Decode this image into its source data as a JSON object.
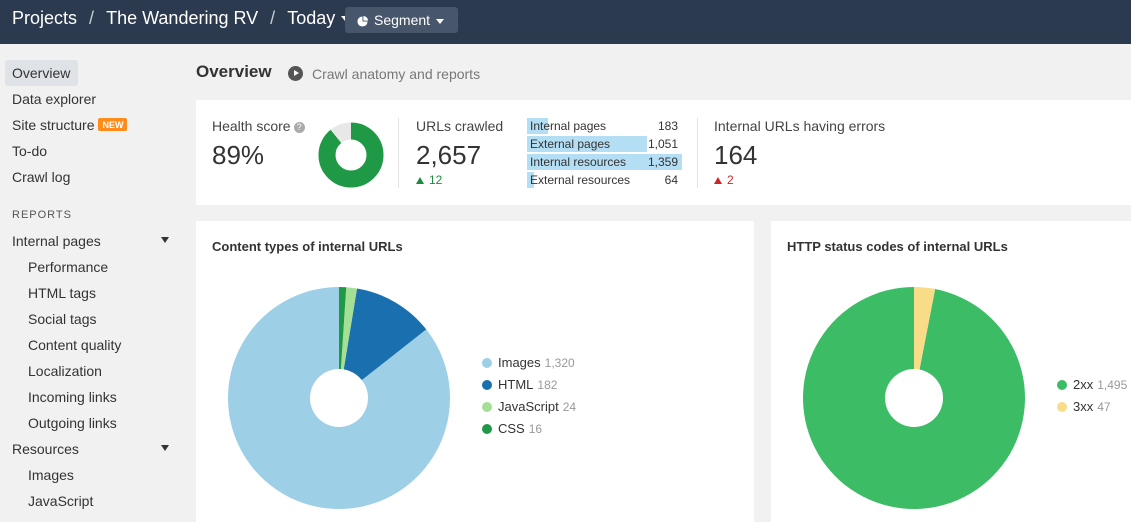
{
  "header": {
    "crumbs": [
      "Projects",
      "The Wandering RV",
      "Today"
    ],
    "segment_label": "Segment",
    "colors": {
      "bar": "#2b3a4e",
      "button": "#47566b"
    }
  },
  "sidebar": {
    "items": [
      {
        "label": "Overview",
        "active": true
      },
      {
        "label": "Data explorer"
      },
      {
        "label": "Site structure",
        "badge": "NEW"
      },
      {
        "label": "To-do"
      },
      {
        "label": "Crawl log"
      }
    ],
    "section_label": "REPORTS",
    "groups": [
      {
        "label": "Internal pages",
        "expanded": true,
        "children": [
          "Performance",
          "HTML tags",
          "Social tags",
          "Content quality",
          "Localization",
          "Incoming links",
          "Outgoing links"
        ]
      },
      {
        "label": "Resources",
        "expanded": true,
        "children": [
          "Images",
          "JavaScript"
        ]
      }
    ]
  },
  "main": {
    "title": "Overview",
    "subtitle": "Crawl anatomy and reports"
  },
  "summary": {
    "health": {
      "label": "Health score",
      "value": "89%",
      "percent": 89
    },
    "urls": {
      "label": "URLs crawled",
      "value": "2,657",
      "delta": "12",
      "rows": [
        {
          "name": "Internal pages",
          "value": "183",
          "count": 183
        },
        {
          "name": "External pages",
          "value": "1,051",
          "count": 1051
        },
        {
          "name": "Internal resources",
          "value": "1,359",
          "count": 1359
        },
        {
          "name": "External resources",
          "value": "64",
          "count": 64
        }
      ]
    },
    "errors": {
      "label": "Internal URLs having errors",
      "value": "164",
      "delta": "2"
    }
  },
  "chart_data": [
    {
      "type": "pie",
      "title": "Content types of internal URLs",
      "categories": [
        "Images",
        "HTML",
        "JavaScript",
        "CSS"
      ],
      "values": [
        1320,
        182,
        24,
        16
      ],
      "colors": [
        "#9dcfe6",
        "#1a6fae",
        "#a5df95",
        "#1f9946"
      ],
      "legend": "right"
    },
    {
      "type": "pie",
      "title": "HTTP status codes of internal URLs",
      "categories": [
        "2xx",
        "3xx"
      ],
      "values": [
        1495,
        47
      ],
      "colors": [
        "#3dbc66",
        "#f9dc88"
      ],
      "legend": "right"
    }
  ]
}
